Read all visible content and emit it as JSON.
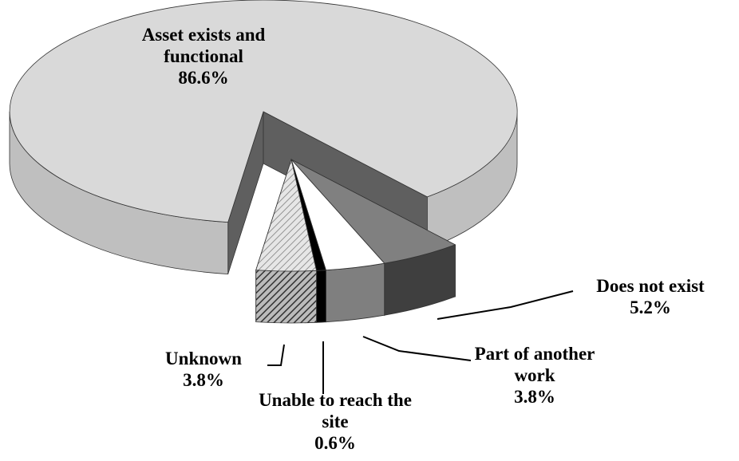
{
  "chart_data": {
    "type": "pie3d",
    "categories": [
      "Asset exists and functional",
      "Does not exist",
      "Part of another work",
      "Unable to reach the site",
      "Unknown"
    ],
    "values": [
      86.6,
      5.2,
      3.8,
      0.6,
      3.8
    ],
    "value_labels": [
      "86.6%",
      "5.2%",
      "3.8%",
      "0.6%",
      "3.8%"
    ],
    "colors": [
      "#d9d9d9",
      "#808080",
      "#ffffff",
      "#000000",
      "#d0d0d0"
    ],
    "side_colors": [
      "#bfbfbf",
      "#3f3f3f",
      "#7f7f7f",
      "#000000",
      "#5a5a5a"
    ],
    "hatched": [
      false,
      false,
      false,
      false,
      true
    ]
  }
}
